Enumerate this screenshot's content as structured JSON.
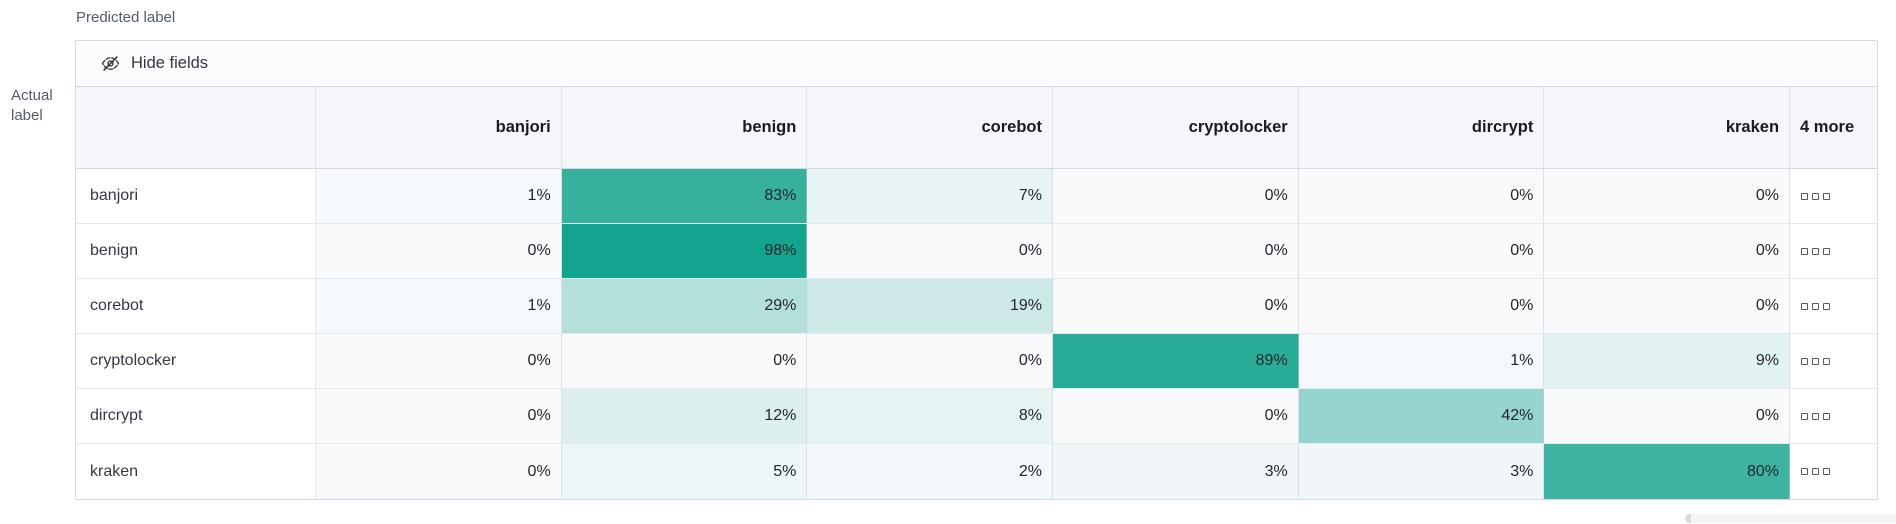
{
  "axes": {
    "predicted": "Predicted label",
    "actual": [
      "Actual",
      "label"
    ]
  },
  "toolbar": {
    "hide_fields_label": "Hide fields"
  },
  "grid": {
    "columns": [
      "banjori",
      "benign",
      "corebot",
      "cryptolocker",
      "dircrypt",
      "kraken"
    ],
    "more_column_label": "4 more",
    "rows": [
      {
        "label": "banjori",
        "cells": [
          "1%",
          "83%",
          "7%",
          "0%",
          "0%",
          "0%"
        ]
      },
      {
        "label": "benign",
        "cells": [
          "0%",
          "98%",
          "0%",
          "0%",
          "0%",
          "0%"
        ]
      },
      {
        "label": "corebot",
        "cells": [
          "1%",
          "29%",
          "19%",
          "0%",
          "0%",
          "0%"
        ]
      },
      {
        "label": "cryptolocker",
        "cells": [
          "0%",
          "0%",
          "0%",
          "89%",
          "1%",
          "9%"
        ]
      },
      {
        "label": "dircrypt",
        "cells": [
          "0%",
          "12%",
          "8%",
          "0%",
          "42%",
          "0%"
        ]
      },
      {
        "label": "kraken",
        "cells": [
          "0%",
          "5%",
          "2%",
          "3%",
          "3%",
          "80%"
        ]
      }
    ]
  },
  "colors": {
    "heat_min": "#F8FAFC",
    "heat_max": "#0EA28B",
    "border": "#d3dae6"
  },
  "chart_data": {
    "type": "heatmap",
    "xlabel": "Predicted label",
    "ylabel": "Actual label",
    "x_categories": [
      "banjori",
      "benign",
      "corebot",
      "cryptolocker",
      "dircrypt",
      "kraken"
    ],
    "y_categories": [
      "banjori",
      "benign",
      "corebot",
      "cryptolocker",
      "dircrypt",
      "kraken"
    ],
    "values_percent": [
      [
        1,
        83,
        7,
        0,
        0,
        0
      ],
      [
        0,
        98,
        0,
        0,
        0,
        0
      ],
      [
        1,
        29,
        19,
        0,
        0,
        0
      ],
      [
        0,
        0,
        0,
        89,
        1,
        9
      ],
      [
        0,
        12,
        8,
        0,
        42,
        0
      ],
      [
        0,
        5,
        2,
        3,
        3,
        80
      ]
    ],
    "hidden_columns_label": "4 more",
    "color_scale": {
      "min_color": "#F8FAFC",
      "max_color": "#0EA28B",
      "domain": [
        0,
        100
      ]
    },
    "legend": "none",
    "grid_lines": true
  }
}
